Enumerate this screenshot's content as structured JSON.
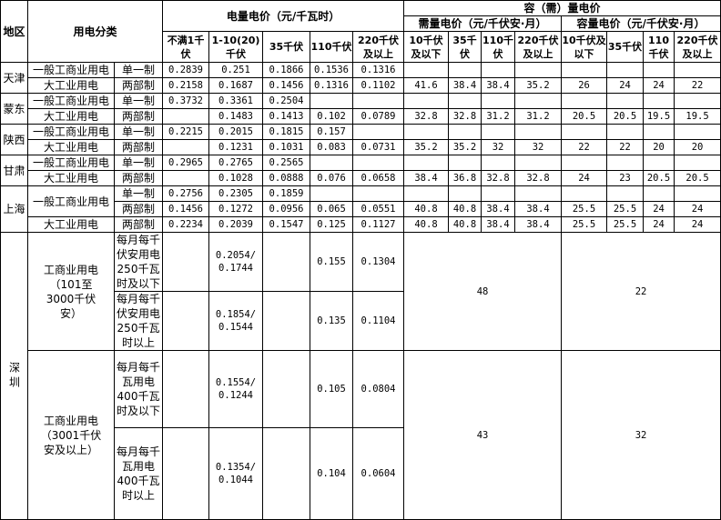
{
  "header": {
    "region": "地区",
    "category": "用电分类",
    "energy_price": "电量电价（元/千瓦时）",
    "capacity_demand_price": "容（需）量电价",
    "demand_price": "需量电价（元/千伏安·月）",
    "capacity_price": "容量电价（元/千伏安·月）",
    "energy_cols": [
      "不满1千伏",
      "1-10(20)千伏",
      "35千伏",
      "110千伏",
      "220千伏及以上"
    ],
    "demand_cols": [
      "10千伏及以下",
      "35千伏",
      "110千伏",
      "220千伏及以上"
    ],
    "capacity_cols": [
      "10千伏及以下",
      "35千伏",
      "110千伏",
      "220千伏及以上"
    ]
  },
  "regions": [
    {
      "name": "天津",
      "rows": [
        {
          "category": "一般工商业用电",
          "scheme": "单一制",
          "energy": [
            "0.2839",
            "0.251",
            "0.1866",
            "0.1536",
            "0.1316"
          ],
          "demand": [
            "",
            "",
            "",
            ""
          ],
          "capacity": [
            "",
            "",
            "",
            ""
          ]
        },
        {
          "category": "大工业用电",
          "scheme": "两部制",
          "energy": [
            "0.2158",
            "0.1687",
            "0.1456",
            "0.1316",
            "0.1102"
          ],
          "demand": [
            "41.6",
            "38.4",
            "38.4",
            "35.2"
          ],
          "capacity": [
            "26",
            "24",
            "24",
            "22"
          ]
        }
      ]
    },
    {
      "name": "蒙东",
      "rows": [
        {
          "category": "一般工商业用电",
          "scheme": "单一制",
          "energy": [
            "0.3732",
            "0.3361",
            "0.2504",
            "",
            ""
          ],
          "demand": [
            "",
            "",
            "",
            ""
          ],
          "capacity": [
            "",
            "",
            "",
            ""
          ]
        },
        {
          "category": "大工业用电",
          "scheme": "两部制",
          "energy": [
            "",
            "0.1483",
            "0.1413",
            "0.102",
            "0.0789"
          ],
          "demand": [
            "32.8",
            "32.8",
            "31.2",
            "31.2"
          ],
          "capacity": [
            "20.5",
            "20.5",
            "19.5",
            "19.5"
          ]
        }
      ]
    },
    {
      "name": "陕西",
      "rows": [
        {
          "category": "一般工商业用电",
          "scheme": "单一制",
          "energy": [
            "0.2215",
            "0.2015",
            "0.1815",
            "0.157",
            ""
          ],
          "demand": [
            "",
            "",
            "",
            ""
          ],
          "capacity": [
            "",
            "",
            "",
            ""
          ]
        },
        {
          "category": "大工业用电",
          "scheme": "两部制",
          "energy": [
            "",
            "0.1231",
            "0.1031",
            "0.083",
            "0.0731"
          ],
          "demand": [
            "35.2",
            "35.2",
            "32",
            "32"
          ],
          "capacity": [
            "22",
            "22",
            "20",
            "20"
          ]
        }
      ]
    },
    {
      "name": "甘肃",
      "rows": [
        {
          "category": "一般工商业用电",
          "scheme": "单一制",
          "energy": [
            "0.2965",
            "0.2765",
            "0.2565",
            "",
            ""
          ],
          "demand": [
            "",
            "",
            "",
            ""
          ],
          "capacity": [
            "",
            "",
            "",
            ""
          ]
        },
        {
          "category": "大工业用电",
          "scheme": "两部制",
          "energy": [
            "",
            "0.1028",
            "0.0888",
            "0.076",
            "0.0658"
          ],
          "demand": [
            "38.4",
            "36.8",
            "32.8",
            "32.8"
          ],
          "capacity": [
            "24",
            "23",
            "20.5",
            "20.5"
          ]
        }
      ]
    },
    {
      "name": "上海",
      "rows": [
        {
          "category": "一般工商业用电",
          "scheme": "单一制",
          "energy": [
            "0.2756",
            "0.2305",
            "0.1859",
            "",
            ""
          ],
          "demand": [
            "",
            "",
            "",
            ""
          ],
          "capacity": [
            "",
            "",
            "",
            ""
          ]
        },
        {
          "category": "一般工商业用电",
          "scheme": "两部制",
          "energy": [
            "0.1456",
            "0.1272",
            "0.0956",
            "0.065",
            "0.0551"
          ],
          "demand": [
            "40.8",
            "40.8",
            "38.4",
            "38.4"
          ],
          "capacity": [
            "25.5",
            "25.5",
            "24",
            "24"
          ]
        },
        {
          "category": "大工业用电",
          "scheme": "两部制",
          "energy": [
            "0.2234",
            "0.2039",
            "0.1547",
            "0.125",
            "0.1127"
          ],
          "demand": [
            "40.8",
            "40.8",
            "38.4",
            "38.4"
          ],
          "capacity": [
            "25.5",
            "25.5",
            "24",
            "24"
          ]
        }
      ]
    }
  ],
  "shenzhen": {
    "name": "深圳",
    "groups": [
      {
        "category": "工商业用电（101至3000千伏安）",
        "demand": "48",
        "capacity": "22",
        "tiers": [
          {
            "label": "每月每千伏安用电250千瓦时及以下",
            "energy": [
              "",
              "0.2054/0.1744",
              "",
              "0.155",
              "0.1304"
            ]
          },
          {
            "label": "每月每千伏安用电250千瓦时以上",
            "energy": [
              "",
              "0.1854/0.1544",
              "",
              "0.135",
              "0.1104"
            ]
          }
        ]
      },
      {
        "category": "工商业用电（3001千伏安及以上）",
        "demand": "43",
        "capacity": "32",
        "tiers": [
          {
            "label": "每月每千瓦用电 400千瓦时及以下",
            "energy": [
              "",
              "0.1554/0.1244",
              "",
              "0.105",
              "0.0804"
            ]
          },
          {
            "label": "每月每千瓦用电 400千瓦时以上",
            "energy": [
              "",
              "0.1354/0.1044",
              "",
              "0.104",
              "0.0604"
            ]
          }
        ]
      }
    ]
  }
}
